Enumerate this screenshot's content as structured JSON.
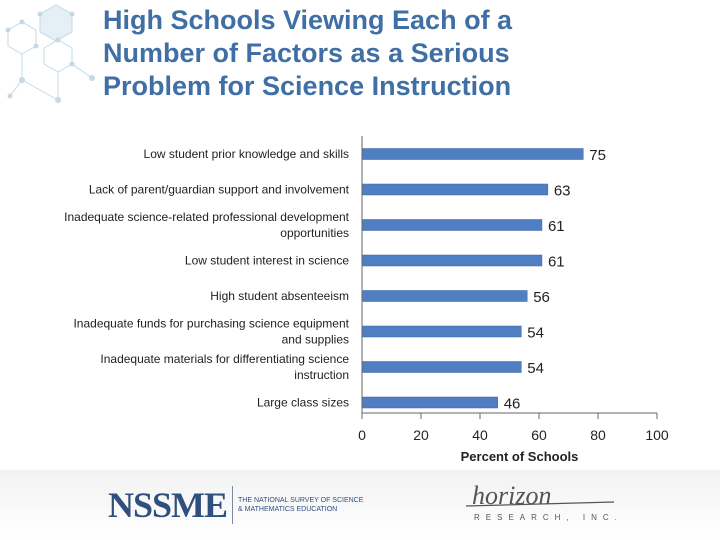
{
  "title_lines": [
    "High Schools Viewing Each of a",
    "Number of Factors as a Serious",
    "Problem for Science Instruction"
  ],
  "colors": {
    "title": "#3f6fa5",
    "bar": "#4f7fc2",
    "axis": "#666666"
  },
  "logos": {
    "nssme_word": "NSSME",
    "nssme_sub": "The National Survey of Science & Mathematics Education",
    "horizon_word": "horizon",
    "horizon_sub": "RESEARCH, INC."
  },
  "chart_data": {
    "type": "bar",
    "orientation": "horizontal",
    "categories": [
      [
        "Low student prior knowledge and skills"
      ],
      [
        "Lack of parent/guardian support and involvement"
      ],
      [
        "Inadequate science-related professional development",
        "opportunities"
      ],
      [
        "Low student interest in science"
      ],
      [
        "High student absenteeism"
      ],
      [
        "Inadequate funds for purchasing science equipment",
        "and supplies"
      ],
      [
        "Inadequate materials for differentiating science",
        "instruction"
      ],
      [
        "Large class sizes"
      ]
    ],
    "values": [
      75,
      63,
      61,
      61,
      56,
      54,
      54,
      46
    ],
    "data_labels": [
      "75",
      "63",
      "61",
      "61",
      "56",
      "54",
      "54",
      "46"
    ],
    "xlim": [
      0,
      100
    ],
    "xticks": [
      0,
      20,
      40,
      60,
      80,
      100
    ],
    "xlabel": "Percent of Schools",
    "ylabel": "",
    "grid": false,
    "legend": "none"
  }
}
